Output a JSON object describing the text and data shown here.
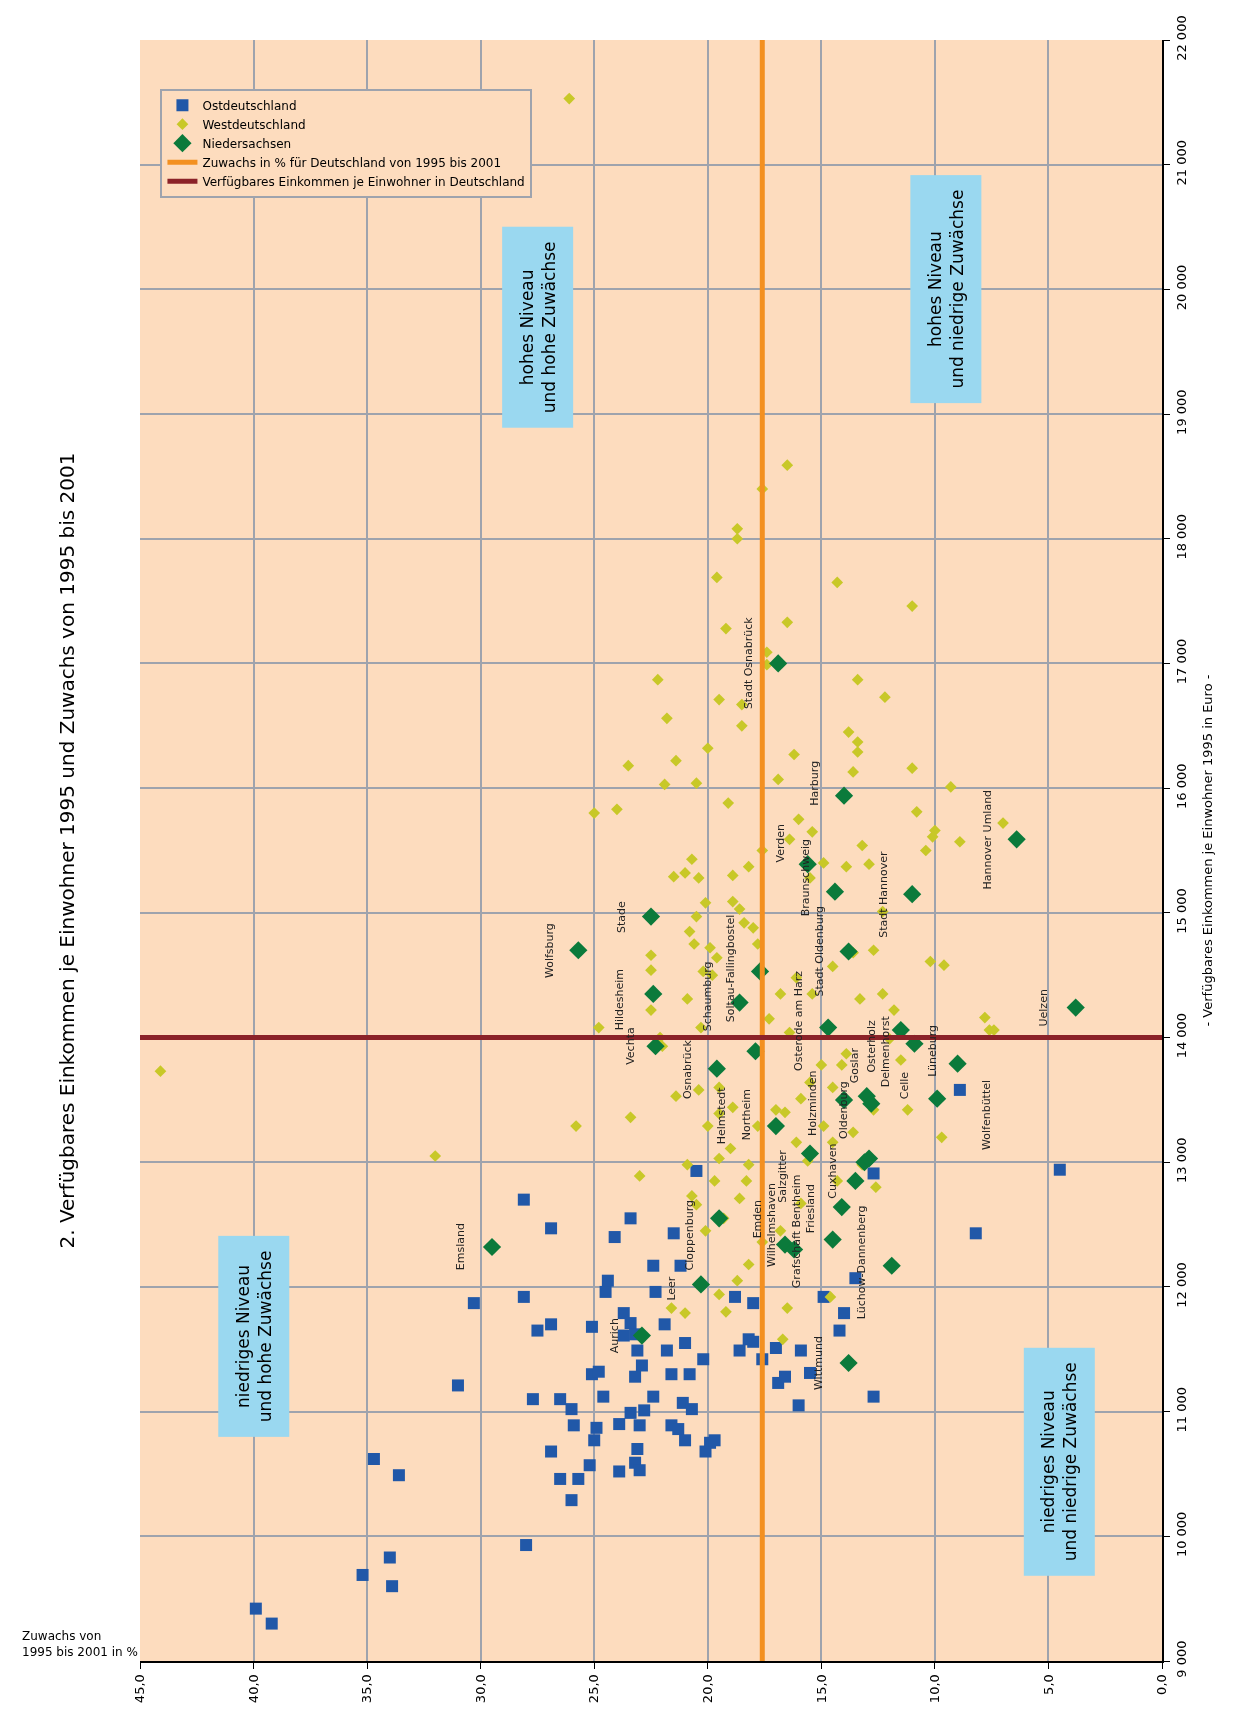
{
  "chart_data": {
    "type": "scatter",
    "title": "2. Verfügbares Einkommen je Einwohner 1995 und Zuwachs von 1995 bis 2001",
    "xlabel": "Zuwachs von\n1995 bis 2001 in %",
    "ylabel": "- Verfügbares Einkommen je Einwohner 1995 in Euro -",
    "xlim": [
      45,
      0
    ],
    "xticks": [
      {
        "value": 45,
        "label": "45,0"
      },
      {
        "value": 40,
        "label": "40,0"
      },
      {
        "value": 35,
        "label": "35,0"
      },
      {
        "value": 30,
        "label": "30,0"
      },
      {
        "value": 25,
        "label": "25,0"
      },
      {
        "value": 20,
        "label": "20,0"
      },
      {
        "value": 15,
        "label": "15,0"
      },
      {
        "value": 10,
        "label": "10,0"
      },
      {
        "value": 5,
        "label": "5,0"
      },
      {
        "value": 0,
        "label": "0,0"
      }
    ],
    "ylim": [
      9000,
      22000
    ],
    "yticks": [
      {
        "value": 9000,
        "label": "9 000"
      },
      {
        "value": 10000,
        "label": "10 000"
      },
      {
        "value": 11000,
        "label": "11 000"
      },
      {
        "value": 12000,
        "label": "12 000"
      },
      {
        "value": 13000,
        "label": "13 000"
      },
      {
        "value": 14000,
        "label": "14 000"
      },
      {
        "value": 15000,
        "label": "15 000"
      },
      {
        "value": 16000,
        "label": "16 000"
      },
      {
        "value": 17000,
        "label": "17 000"
      },
      {
        "value": 18000,
        "label": "18 000"
      },
      {
        "value": 19000,
        "label": "19 000"
      },
      {
        "value": 20000,
        "label": "20 000"
      },
      {
        "value": 21000,
        "label": "21 000"
      },
      {
        "value": 22000,
        "label": "22 000"
      }
    ],
    "grid": true,
    "legend": "top left",
    "series": [
      {
        "name": "Ostdeutschland",
        "color": "#2158a8",
        "marker": "square",
        "x": [
          39.9,
          39.2,
          35.2,
          34.0,
          33.9,
          34.7,
          33.6,
          31.0,
          30.3,
          28.0,
          28.1,
          26.9,
          28.1,
          27.5,
          26.9,
          27.7,
          26.9,
          26.5,
          26.0,
          25.7,
          26.5,
          26.0,
          25.9,
          25.2,
          25.0,
          24.9,
          25.1,
          24.8,
          25.1,
          24.6,
          24.5,
          24.4,
          24.1,
          23.4,
          23.9,
          23.2,
          23.0,
          23.1,
          23.9,
          23.4,
          23.0,
          22.8,
          23.2,
          22.9,
          23.1,
          23.7,
          23.4,
          23.7,
          23.2,
          22.4,
          22.3,
          22.4,
          21.9,
          21.8,
          21.6,
          21.6,
          21.3,
          21.1,
          21.0,
          21.5,
          21.2,
          21.0,
          20.8,
          20.7,
          20.2,
          20.1,
          19.9,
          19.7,
          20.5,
          18.8,
          18.6,
          18.2,
          18.0,
          18.0,
          17.6,
          17.0,
          16.9,
          16.6,
          15.9,
          16.0,
          15.5,
          14.9,
          14.2,
          14.0,
          13.5,
          12.7,
          12.7,
          8.9,
          8.2,
          4.5
        ],
        "values": [
          9420,
          9300,
          9690,
          9830,
          9600,
          10620,
          10490,
          11210,
          11870,
          9930,
          12700,
          12470,
          11920,
          11650,
          11700,
          11100,
          10680,
          10460,
          10290,
          10460,
          11100,
          11020,
          10890,
          10570,
          10770,
          10870,
          11300,
          11320,
          11680,
          11120,
          11960,
          12050,
          12400,
          12550,
          10520,
          10590,
          10530,
          10700,
          10900,
          10990,
          10890,
          11010,
          11280,
          11370,
          11490,
          11610,
          11710,
          11790,
          11620,
          12170,
          11960,
          11120,
          11700,
          11490,
          11300,
          10890,
          10860,
          11070,
          10770,
          12430,
          12170,
          11550,
          11300,
          11020,
          11420,
          10680,
          10750,
          10770,
          12930,
          11920,
          11490,
          11580,
          11560,
          11870,
          11420,
          11510,
          11230,
          11280,
          11490,
          11050,
          11310,
          11920,
          11650,
          11790,
          12070,
          11120,
          12910,
          13580,
          12430,
          12940
        ]
      },
      {
        "name": "Westdeutschland",
        "color": "#c8c828",
        "marker": "diamond",
        "x": [
          44.1,
          26.1,
          32.0,
          25.8,
          23.4,
          23.0,
          25.0,
          24.0,
          23.5,
          22.2,
          21.8,
          21.4,
          21.9,
          20.5,
          20.0,
          19.5,
          19.6,
          19.2,
          18.7,
          18.7,
          18.5,
          18.5,
          17.6,
          17.4,
          16.5,
          16.5,
          16.2,
          16.9,
          17.4,
          14.3,
          13.6,
          13.8,
          13.4,
          13.4,
          13.4,
          12.2,
          11.0,
          11.0,
          9.3,
          10.8,
          10.4,
          10.0,
          10.1,
          7.0,
          8.9,
          10.2,
          9.6,
          7.8,
          7.6,
          7.4,
          9.7,
          11.2,
          12.0,
          12.7,
          12.3,
          12.9,
          13.2,
          13.9,
          14.9,
          15.4,
          16.0,
          16.4,
          15.5,
          17.6,
          18.2,
          18.9,
          19.1,
          21.0,
          20.7,
          21.5,
          20.4,
          20.1,
          20.5,
          20.8,
          20.6,
          19.9,
          18.9,
          18.6,
          18.4,
          18.0,
          17.8,
          19.6,
          20.2,
          19.8,
          20.9,
          20.3,
          22.5,
          22.5,
          22.5,
          24.8,
          22.1,
          22.0,
          21.4,
          20.4,
          19.5,
          19.5,
          20.0,
          18.9,
          19.0,
          19.5,
          19.7,
          20.9,
          20.7,
          20.5,
          20.1,
          19.3,
          18.6,
          18.3,
          18.2,
          17.8,
          17.0,
          16.6,
          15.9,
          15.5,
          15.0,
          14.5,
          14.1,
          14.9,
          16.1,
          15.6,
          14.5,
          13.6,
          12.7,
          13.2,
          12.6,
          14.3,
          15.9,
          16.8,
          17.6,
          18.2,
          18.7,
          19.5,
          16.5,
          14.6,
          16.7,
          19.2,
          21.0,
          21.6,
          13.9,
          13.3,
          12.3,
          11.8,
          15.4,
          16.1,
          16.8,
          17.3,
          16.4,
          14.5,
          13.6,
          11.5
        ],
        "values": [
          13730,
          21530,
          13050,
          13290,
          13360,
          12890,
          15800,
          15830,
          16180,
          16870,
          16560,
          16220,
          16030,
          16040,
          16320,
          16710,
          17690,
          17280,
          18080,
          18000,
          16670,
          16500,
          18400,
          17090,
          18590,
          17330,
          16270,
          16070,
          16990,
          17650,
          16130,
          16450,
          16370,
          16290,
          16870,
          16730,
          17460,
          16160,
          16010,
          15810,
          15500,
          15660,
          15610,
          15720,
          15570,
          14610,
          14580,
          14160,
          14060,
          14060,
          13200,
          13420,
          13990,
          14700,
          15010,
          15390,
          15540,
          15370,
          15400,
          15650,
          15750,
          15590,
          15280,
          15500,
          15370,
          15300,
          15880,
          15320,
          15430,
          15290,
          15280,
          15080,
          14970,
          14850,
          14750,
          14720,
          15090,
          15030,
          14920,
          14880,
          14750,
          14640,
          14530,
          14500,
          14310,
          14080,
          14220,
          14540,
          14660,
          14080,
          14000,
          13930,
          13530,
          13580,
          13600,
          13390,
          13290,
          13440,
          13110,
          13030,
          12850,
          12980,
          12730,
          12660,
          12450,
          12550,
          12710,
          12850,
          12980,
          13290,
          13420,
          13400,
          13510,
          13640,
          13780,
          13600,
          13780,
          13290,
          13160,
          13010,
          13160,
          13240,
          13420,
          12980,
          12800,
          12850,
          12670,
          12450,
          12360,
          12180,
          12050,
          11940,
          11830,
          11920,
          11580,
          11800,
          11790,
          11830,
          13870,
          14310,
          14350,
          14220,
          14350,
          14480,
          14350,
          14150,
          14040,
          14570,
          14680,
          13820
        ]
      },
      {
        "name": "Niedersachsen",
        "color": "#0b7a3b",
        "marker": "diamond",
        "x": [
          29.5,
          25.7,
          22.5,
          22.4,
          22.3,
          19.6,
          19.5,
          20.3,
          22.9,
          18.6,
          17.7,
          16.9,
          17.9,
          17.0,
          16.6,
          16.2,
          15.5,
          14.1,
          14.0,
          13.0,
          12.8,
          11.5,
          10.9,
          9.9,
          9.0,
          3.8,
          6.4,
          11.0,
          13.8,
          15.6,
          14.0,
          14.4,
          14.7,
          13.8,
          11.9,
          14.5,
          13.5,
          13.1,
          12.9
        ],
        "values": [
          12320,
          14700,
          14970,
          14350,
          13930,
          13750,
          12550,
          12020,
          11610,
          14280,
          14530,
          17000,
          13890,
          13290,
          12340,
          12300,
          13070,
          12640,
          13500,
          13530,
          13470,
          14060,
          13950,
          13510,
          13790,
          14240,
          15590,
          15150,
          14690,
          15390,
          15940,
          15170,
          14080,
          11390,
          12170,
          12380,
          12850,
          13000,
          13030
        ]
      },
      {
        "name": "Zuwachs in % für Deutschland von 1995 bis 2001",
        "color": "#f39020",
        "type": "line",
        "marker": "none",
        "x": [
          17.6,
          17.6
        ],
        "values": [
          9000,
          22000
        ]
      }
    ],
    "ref_lines": [
      {
        "axis": "y",
        "value": 14000,
        "label": "Verfügbares Einkommen je Einwohner in Deutschland",
        "color": "#8b2228"
      }
    ],
    "annotations": [
      "hohes Niveau\nund hohe Zuwächse",
      "hohes Niveau\nund niedrige Zuwächse",
      "niedriges Niveau\nund hohe Zuwächse",
      "niedriges Niveau\nund niedrige Zuwächse",
      "Emsland",
      "Wolfsburg",
      "Stade",
      "Hildesheim",
      "Vechta",
      "Osnabrück",
      "Helmstedt",
      "Cloppenburg",
      "Leer",
      "Aurich",
      "Schaumburg",
      "Soltau-Fallingbostel",
      "Stadt Osnabrück",
      "Northeim",
      "Emden",
      "Wilhelmshaven",
      "Salzgitter",
      "Grafschaft Bentheim",
      "Friesland",
      "Holzminden",
      "Osterode am Harz",
      "Cuxhaven",
      "Oldenburg",
      "Goslar",
      "Osterholz",
      "Delmenhorst",
      "Celle",
      "Lüneburg",
      "Wolfenbüttel",
      "Uelzen",
      "Hannover Umland",
      "Stadt Hannover",
      "Stadt Oldenburg",
      "Braunschweig",
      "Harburg",
      "Verden",
      "Wittmund",
      "Lüchow-Dannenberg"
    ]
  }
}
